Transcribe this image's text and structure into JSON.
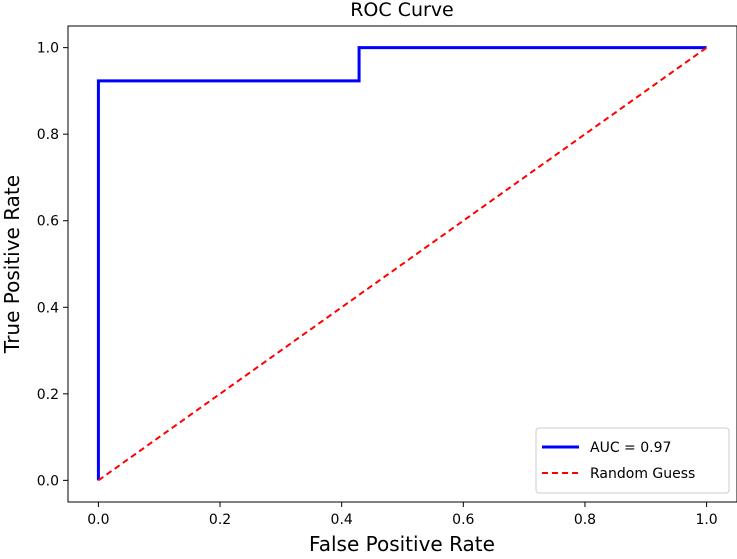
{
  "chart_data": {
    "type": "line",
    "title": "ROC Curve",
    "xlabel": "False Positive Rate",
    "ylabel": "True Positive Rate",
    "xlim": [
      -0.05,
      1.05
    ],
    "ylim": [
      -0.05,
      1.05
    ],
    "x_ticks": [
      0.0,
      0.2,
      0.4,
      0.6,
      0.8,
      1.0
    ],
    "y_ticks": [
      0.0,
      0.2,
      0.4,
      0.6,
      0.8,
      1.0
    ],
    "x_tick_labels": [
      "0.0",
      "0.2",
      "0.4",
      "0.6",
      "0.8",
      "1.0"
    ],
    "y_tick_labels": [
      "0.0",
      "0.2",
      "0.4",
      "0.6",
      "0.8",
      "1.0"
    ],
    "grid": false,
    "legend_position": "lower-right",
    "series": [
      {
        "name": "AUC = 0.97",
        "color": "#0000ff",
        "line_style": "solid",
        "x": [
          0.0,
          0.0,
          0.0,
          0.4286,
          0.4286,
          1.0
        ],
        "y": [
          0.0,
          0.0769,
          0.9231,
          0.9231,
          1.0,
          1.0
        ]
      },
      {
        "name": "Random Guess",
        "color": "#ff0000",
        "line_style": "dashed",
        "x": [
          0.0,
          1.0
        ],
        "y": [
          0.0,
          1.0
        ]
      }
    ]
  }
}
